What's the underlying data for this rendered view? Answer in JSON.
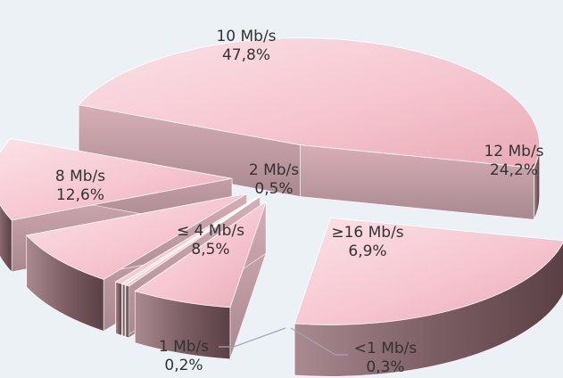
{
  "chart_data": {
    "type": "pie",
    "style": "3d-exploded",
    "categories": [
      "10 Mb/s",
      "12 Mb/s",
      "≥16 Mb/s",
      "<1 Mb/s",
      "1 Mb/s",
      "2 Mb/s",
      "≤ 4 Mb/s",
      "8 Mb/s"
    ],
    "values": [
      47.8,
      24.2,
      6.9,
      0.3,
      0.2,
      0.5,
      8.5,
      12.6
    ],
    "value_labels": [
      "47,8%",
      "24,2%",
      "6,9%",
      "0,3%",
      "0,2%",
      "0,5%",
      "8,5%",
      "12,6%"
    ],
    "title": "",
    "legend": "none",
    "colors": {
      "top": "#f6c6d0",
      "side": "#7d5f66",
      "background": "#ecf1f6",
      "leader": "#9aa8b8"
    }
  }
}
